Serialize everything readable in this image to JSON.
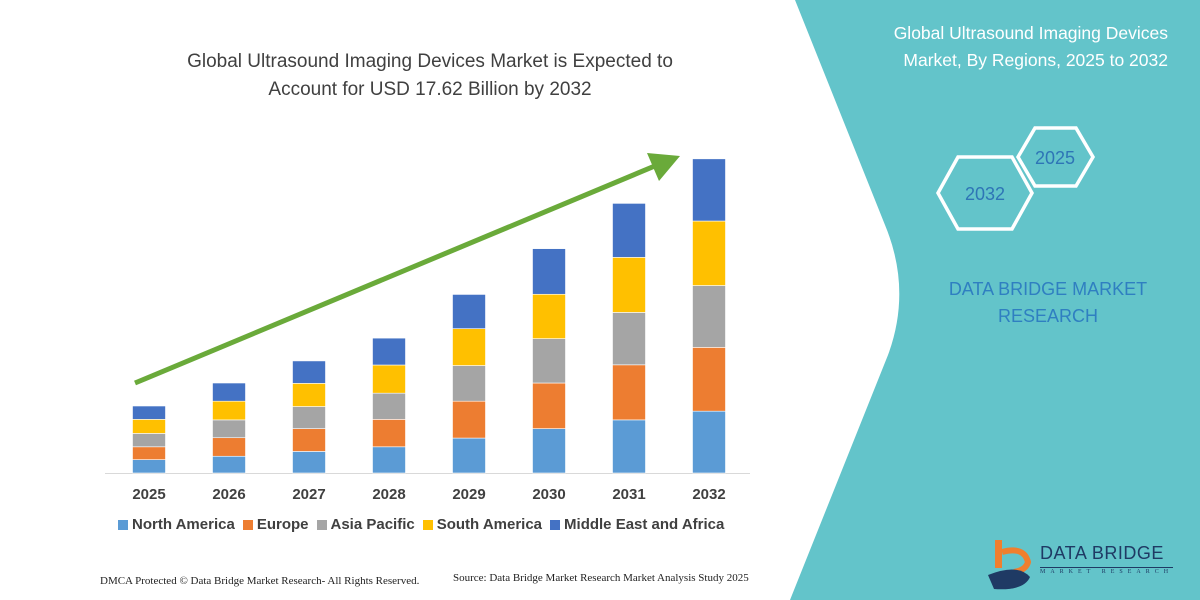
{
  "chart_data": {
    "type": "bar",
    "stacked": true,
    "title": "Global Ultrasound Imaging Devices Market is Expected to Account for USD 17.62 Billion by 2032",
    "title_lines": [
      "Global Ultrasound Imaging Devices Market is Expected to",
      "Account for USD 17.62 Billion by 2032"
    ],
    "xlabel": "",
    "ylabel": "",
    "y_axis_visible": false,
    "grid": false,
    "legend_position": "bottom",
    "categories": [
      "2025",
      "2026",
      "2027",
      "2028",
      "2029",
      "2030",
      "2031",
      "2032"
    ],
    "series": [
      {
        "name": "North America",
        "color": "#5b9bd5",
        "values": [
          0.75,
          0.94,
          1.21,
          1.47,
          1.96,
          2.49,
          2.98,
          3.47
        ]
      },
      {
        "name": "Europe",
        "color": "#ed7d31",
        "values": [
          0.72,
          1.04,
          1.28,
          1.54,
          2.07,
          2.56,
          3.09,
          3.58
        ]
      },
      {
        "name": "Asia Pacific",
        "color": "#a5a5a5",
        "values": [
          0.75,
          1.0,
          1.24,
          1.47,
          2.0,
          2.49,
          2.94,
          3.47
        ]
      },
      {
        "name": "South America",
        "color": "#ffc000",
        "values": [
          0.79,
          1.05,
          1.3,
          1.58,
          2.07,
          2.49,
          3.09,
          3.62
        ]
      },
      {
        "name": "Middle East and Africa",
        "color": "#4472c4",
        "values": [
          0.75,
          1.02,
          1.26,
          1.51,
          1.92,
          2.56,
          3.03,
          3.49
        ]
      }
    ],
    "trend_arrow_color": "#6aaa3a"
  },
  "side_panel": {
    "title_lines": [
      "Global Ultrasound Imaging Devices",
      "Market, By Regions, 2025 to 2032"
    ],
    "hex_labels": [
      "2025",
      "2032"
    ],
    "brand_lines": [
      "DATA BRIDGE MARKET",
      "RESEARCH"
    ],
    "panel_color": "#63c4ca",
    "hex_text_color": "#2e75b6"
  },
  "footer": {
    "dmca": "DMCA Protected © Data Bridge Market Research-  All Rights Reserved.",
    "source": "Source: Data Bridge Market Research  Market Analysis Study 2025"
  },
  "logo": {
    "name": "DATA BRIDGE",
    "tagline": "MARKET RESEARCH"
  }
}
